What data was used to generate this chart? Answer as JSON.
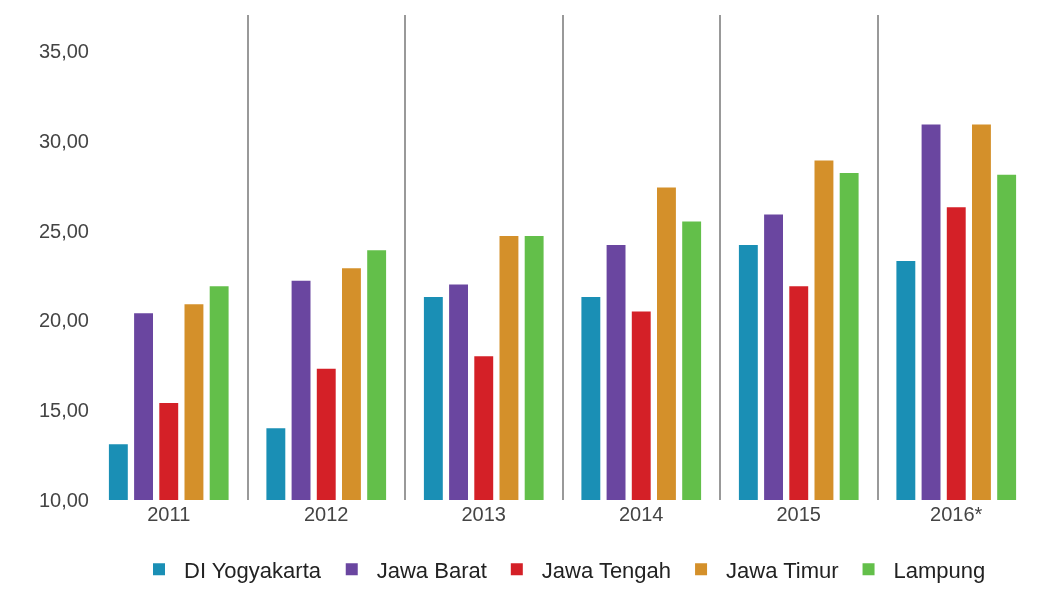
{
  "chart_data": {
    "type": "bar",
    "categories": [
      "2011",
      "2012",
      "2013",
      "2014",
      "2015",
      "2016*"
    ],
    "series": [
      {
        "name": "DI Yogyakarta",
        "color": "#1a8fb5",
        "values": [
          13.1,
          14.0,
          21.3,
          21.3,
          24.2,
          23.3
        ]
      },
      {
        "name": "Jawa Barat",
        "color": "#6a46a0",
        "values": [
          20.4,
          22.2,
          22.0,
          24.2,
          25.9,
          30.9
        ]
      },
      {
        "name": "Jawa Tengah",
        "color": "#d42027",
        "values": [
          15.4,
          17.3,
          18.0,
          20.5,
          21.9,
          26.3
        ]
      },
      {
        "name": "Jawa Timur",
        "color": "#d4902a",
        "values": [
          20.9,
          22.9,
          24.7,
          27.4,
          28.9,
          30.9
        ]
      },
      {
        "name": "Lampung",
        "color": "#63bf4a",
        "values": [
          21.9,
          23.9,
          24.7,
          25.5,
          28.2,
          28.1
        ]
      }
    ],
    "ylim": [
      10,
      37
    ],
    "yticks": [
      {
        "value": 10,
        "label": "10,00"
      },
      {
        "value": 15,
        "label": "15,00"
      },
      {
        "value": 20,
        "label": "20,00"
      },
      {
        "value": 25,
        "label": "25,00"
      },
      {
        "value": 30,
        "label": "30,00"
      },
      {
        "value": 35,
        "label": "35,00"
      }
    ],
    "grid": "x",
    "legend": "bottom"
  }
}
